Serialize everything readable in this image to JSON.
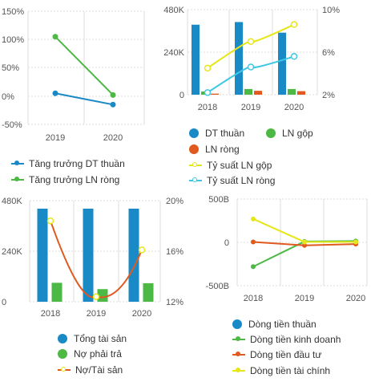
{
  "colors": {
    "blue": "#1a8ac7",
    "green": "#4cb944",
    "orange": "#e05a20",
    "yellow": "#e6e619",
    "cyan": "#3fc8e4"
  },
  "chart_data": [
    {
      "id": "growth",
      "type": "line",
      "x": [
        "2019",
        "2020"
      ],
      "yticks": [
        "150%",
        "100%",
        "50%",
        "0%",
        "-50%"
      ],
      "ylim": [
        -50,
        150
      ],
      "series": [
        {
          "name": "Tăng trưởng DT thuần",
          "color": "#1a8ac7",
          "values": [
            5,
            -15
          ]
        },
        {
          "name": "Tăng trưởng LN ròng",
          "color": "#4cb944",
          "values": [
            105,
            2
          ]
        }
      ],
      "legend": [
        "Tăng trưởng DT thuần",
        "Tăng trưởng LN ròng"
      ]
    },
    {
      "id": "revenue",
      "type": "bar",
      "categories": [
        "2018",
        "2019",
        "2020"
      ],
      "yticks_left": [
        "480K",
        "240K",
        "0"
      ],
      "ylim_left": [
        0,
        480
      ],
      "yticks_right": [
        "10%",
        "6%",
        "2%"
      ],
      "ylim_right": [
        2,
        10
      ],
      "bars": [
        {
          "name": "DT thuần",
          "color": "#1a8ac7",
          "values": [
            395,
            410,
            350
          ]
        },
        {
          "name": "LN gộp",
          "color": "#4cb944",
          "values": [
            18,
            32,
            32
          ]
        },
        {
          "name": "LN ròng",
          "color": "#e05a20",
          "values": [
            6,
            22,
            20
          ]
        }
      ],
      "lines": [
        {
          "name": "Tỷ suất LN gộp",
          "color": "#e6e619",
          "values": [
            4.5,
            7.0,
            8.6
          ]
        },
        {
          "name": "Tỷ suất LN ròng",
          "color": "#3fc8e4",
          "values": [
            2.2,
            4.6,
            5.6
          ]
        }
      ],
      "legend": [
        "DT thuần",
        "LN gộp",
        "LN ròng",
        "Tỷ suất LN gộp",
        "Tỷ suất LN ròng"
      ]
    },
    {
      "id": "assets",
      "type": "bar",
      "categories": [
        "2018",
        "2019",
        "2020"
      ],
      "yticks_left": [
        "480K",
        "240K",
        "0"
      ],
      "ylim_left": [
        0,
        480
      ],
      "yticks_right": [
        "20%",
        "16%",
        "12%"
      ],
      "ylim_right": [
        12,
        20
      ],
      "bars": [
        {
          "name": "Tổng tài sản",
          "color": "#1a8ac7",
          "values": [
            490,
            485,
            530
          ]
        },
        {
          "name": "Nợ phải trả",
          "color": "#4cb944",
          "values": [
            90,
            60,
            88
          ]
        }
      ],
      "lines": [
        {
          "name": "Nợ/Tài sản",
          "color": "#e05a20",
          "marker": "#e6e619",
          "values": [
            18.4,
            12.4,
            16.1
          ]
        }
      ],
      "legend": [
        "Tổng tài sản",
        "Nợ phải trả",
        "Nợ/Tài sản"
      ]
    },
    {
      "id": "cashflow",
      "type": "line",
      "x": [
        "2018",
        "2019",
        "2020"
      ],
      "yticks": [
        "500B",
        "0",
        "-500B"
      ],
      "ylim": [
        -500,
        500
      ],
      "series": [
        {
          "name": "Dòng tiền thuần",
          "color": "#1a8ac7",
          "values": [
            null,
            null,
            null
          ]
        },
        {
          "name": "Dòng tiền kinh doanh",
          "color": "#4cb944",
          "values": [
            -280,
            10,
            15
          ]
        },
        {
          "name": "Dòng tiền đầu tư",
          "color": "#e05a20",
          "values": [
            5,
            -35,
            -20
          ]
        },
        {
          "name": "Dòng tiền tài chính",
          "color": "#e6e619",
          "values": [
            270,
            5,
            5
          ]
        }
      ],
      "legend": [
        "Dòng tiền thuần",
        "Dòng tiền kinh doanh",
        "Dòng tiền đầu tư",
        "Dòng tiền tài chính"
      ]
    }
  ]
}
